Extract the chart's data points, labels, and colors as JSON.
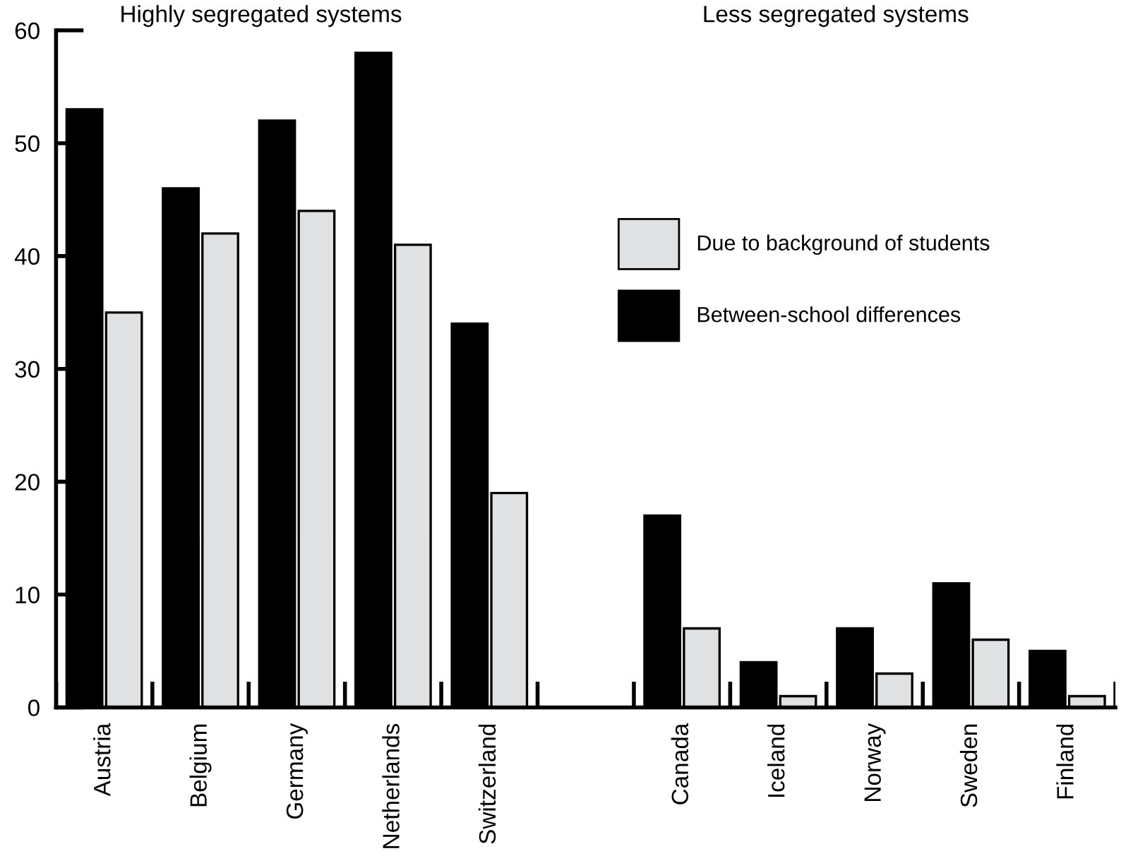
{
  "chart_data": {
    "type": "bar",
    "categories": [
      "Austria",
      "Belgium",
      "Germany",
      "Netherlands",
      "Switzerland",
      null,
      "Canada",
      "Iceland",
      "Norway",
      "Sweden",
      "Finland"
    ],
    "series": [
      {
        "name": "Between-school differences",
        "color": "#000000",
        "values": [
          53,
          46,
          52,
          58,
          34,
          null,
          17,
          4,
          7,
          11,
          5
        ]
      },
      {
        "name": "Due to background of students",
        "color": "#e0e1e3",
        "values": [
          35,
          42,
          44,
          41,
          19,
          null,
          7,
          1,
          3,
          6,
          1
        ]
      }
    ],
    "ylim": [
      0,
      60
    ],
    "yticks": [
      0,
      10,
      20,
      30,
      40,
      50,
      60
    ],
    "grid": false,
    "legend": "top right",
    "annotations": [
      "Highly segregated systems",
      "Less segregated systems"
    ]
  }
}
